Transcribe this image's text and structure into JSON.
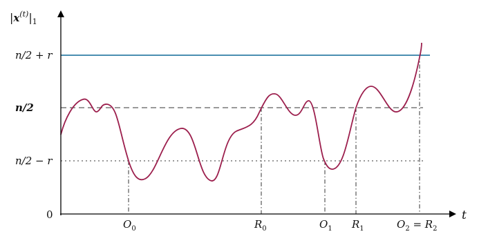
{
  "y_axis": {
    "label_prefix": "|",
    "label_var": "x",
    "label_sup": "(t)",
    "label_suffix": "|",
    "label_sub": "1"
  },
  "x_axis": {
    "label": "t"
  },
  "y_ticks": {
    "upper": "n/2 + r",
    "middle": "n/2",
    "lower": "n/2 − r",
    "zero": "0"
  },
  "x_markers": {
    "o0": {
      "main": "O",
      "sub": "0"
    },
    "r0": {
      "main": "R",
      "sub": "0"
    },
    "o1": {
      "main": "O",
      "sub": "1"
    },
    "r1": {
      "main": "R",
      "sub": "1"
    },
    "o2r2": {
      "main1": "O",
      "sub1": "2",
      "eq": " = ",
      "main2": "R",
      "sub2": "2"
    }
  },
  "colors": {
    "curve": "#9c1f4d",
    "upper_line": "#2f7ea6",
    "axis": "#000000",
    "guides": "#333333"
  }
}
